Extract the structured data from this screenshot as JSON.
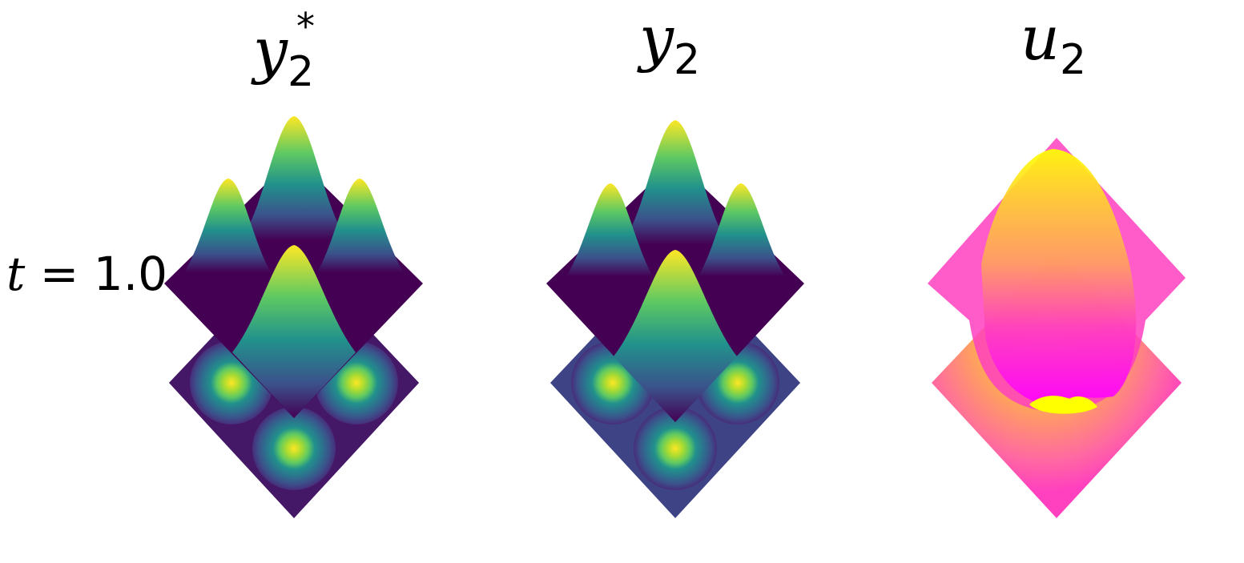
{
  "row_label": {
    "var": "t",
    "eq": " = ",
    "value": "1.0"
  },
  "panels": [
    {
      "title_base": "y",
      "title_sub": "2",
      "title_sup": "*"
    },
    {
      "title_base": "y",
      "title_sub": "2",
      "title_sup": ""
    },
    {
      "title_base": "u",
      "title_sub": "2",
      "title_sup": ""
    }
  ],
  "colors": {
    "viridis": [
      "#440154",
      "#472d7b",
      "#3b528b",
      "#2c728e",
      "#21918c",
      "#28ae80",
      "#5ec962",
      "#addc30",
      "#fde725"
    ],
    "spring_pink": [
      "#ff00ff",
      "#ff40bf",
      "#ff6aa0",
      "#ff9f60",
      "#ffd030",
      "#ffff00"
    ]
  },
  "chart_data": [
    {
      "type": "surface3d",
      "title": "y₂*",
      "description_of_shape": "four gaussian bumps arranged in a diamond plus filled contour projection below",
      "peaks": [
        {
          "position": "back",
          "height": 1.0
        },
        {
          "position": "left",
          "height": 0.83
        },
        {
          "position": "right",
          "height": 0.83
        },
        {
          "position": "front",
          "height": 1.0
        }
      ],
      "contour_projection_peaks": 3,
      "colormap": "viridis"
    },
    {
      "type": "surface3d",
      "title": "y₂",
      "peaks": [
        {
          "position": "back",
          "height": 0.98
        },
        {
          "position": "left",
          "height": 0.8
        },
        {
          "position": "right",
          "height": 0.8
        },
        {
          "position": "front",
          "height": 0.98
        }
      ],
      "contour_projection_peaks": 3,
      "colormap": "viridis"
    },
    {
      "type": "surface3d",
      "title": "u₂",
      "peaks": [
        {
          "position": "back-center",
          "height": 1.0
        }
      ],
      "colormap": "spring"
    }
  ]
}
